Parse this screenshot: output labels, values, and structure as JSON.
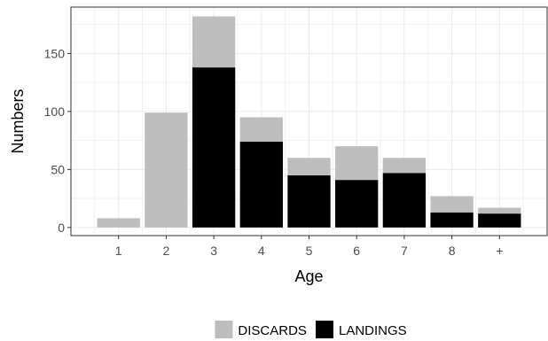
{
  "chart_data": {
    "type": "bar",
    "stacked": true,
    "categories": [
      "1",
      "2",
      "3",
      "4",
      "5",
      "6",
      "7",
      "8",
      "+"
    ],
    "series": [
      {
        "name": "LANDINGS",
        "color": "#000000",
        "values": [
          0,
          0,
          138,
          74,
          45,
          41,
          47,
          13,
          12
        ]
      },
      {
        "name": "DISCARDS",
        "color": "#bebebe",
        "values": [
          8,
          99,
          44,
          21,
          15,
          29,
          13,
          14,
          5
        ]
      }
    ],
    "xlabel": "Age",
    "ylabel": "Numbers",
    "ylim": [
      -7,
      190
    ],
    "yticks": [
      0,
      50,
      100,
      150
    ],
    "grid": true,
    "legend": {
      "position": "bottom",
      "entries": [
        "DISCARDS",
        "LANDINGS"
      ]
    }
  }
}
